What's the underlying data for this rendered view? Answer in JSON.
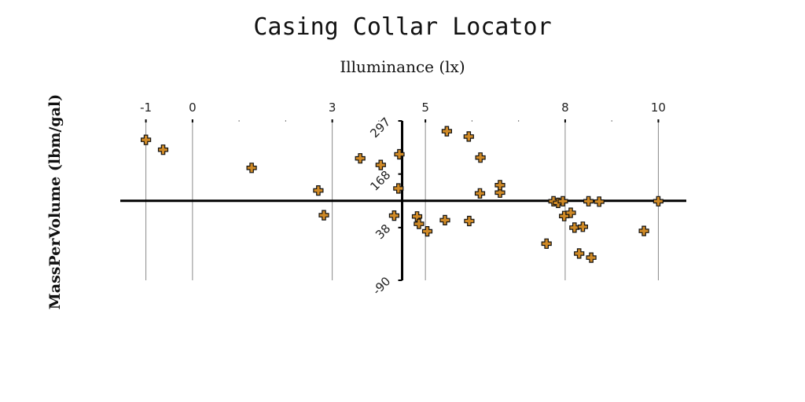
{
  "chart_data": {
    "type": "scatter",
    "title": "Casing Collar Locator",
    "xlabel": "Illuminance (lx)",
    "ylabel": "MassPerVolume (lbm/gal)",
    "xlim": [
      -1.55,
      10.6
    ],
    "ylim": [
      -90,
      297
    ],
    "x_ticks": [
      -1,
      0,
      3,
      5,
      8,
      10
    ],
    "x_minor_ticks": [
      1,
      2,
      4,
      6,
      7,
      9
    ],
    "y_ticks": [
      -90,
      38,
      168,
      297
    ],
    "x_axis_crosses_y": 103,
    "y_axis_crosses_x": 4.5,
    "grid": {
      "x_major": true,
      "y": false
    },
    "marker": "plus",
    "marker_color": "#d08a26",
    "marker_edge_color": "#111111",
    "points": [
      {
        "x": -1.0,
        "y": 251
      },
      {
        "x": -0.63,
        "y": 227
      },
      {
        "x": 1.27,
        "y": 183
      },
      {
        "x": 2.7,
        "y": 128
      },
      {
        "x": 2.82,
        "y": 68
      },
      {
        "x": 3.6,
        "y": 206
      },
      {
        "x": 4.04,
        "y": 190
      },
      {
        "x": 4.33,
        "y": 67
      },
      {
        "x": 4.42,
        "y": 133
      },
      {
        "x": 4.44,
        "y": 216
      },
      {
        "x": 4.82,
        "y": 65
      },
      {
        "x": 4.86,
        "y": 47
      },
      {
        "x": 5.04,
        "y": 29
      },
      {
        "x": 5.42,
        "y": 56
      },
      {
        "x": 5.46,
        "y": 272
      },
      {
        "x": 5.93,
        "y": 259
      },
      {
        "x": 5.94,
        "y": 54
      },
      {
        "x": 6.17,
        "y": 121
      },
      {
        "x": 6.18,
        "y": 208
      },
      {
        "x": 6.6,
        "y": 123
      },
      {
        "x": 6.6,
        "y": 141
      },
      {
        "x": 7.6,
        "y": -1
      },
      {
        "x": 7.75,
        "y": 102
      },
      {
        "x": 7.85,
        "y": 98
      },
      {
        "x": 7.95,
        "y": 102
      },
      {
        "x": 7.98,
        "y": 66
      },
      {
        "x": 8.12,
        "y": 74
      },
      {
        "x": 8.2,
        "y": 38
      },
      {
        "x": 8.3,
        "y": -25
      },
      {
        "x": 8.38,
        "y": 40
      },
      {
        "x": 8.5,
        "y": 102
      },
      {
        "x": 8.56,
        "y": -35
      },
      {
        "x": 8.73,
        "y": 101
      },
      {
        "x": 9.69,
        "y": 30
      },
      {
        "x": 10.0,
        "y": 102
      }
    ]
  }
}
